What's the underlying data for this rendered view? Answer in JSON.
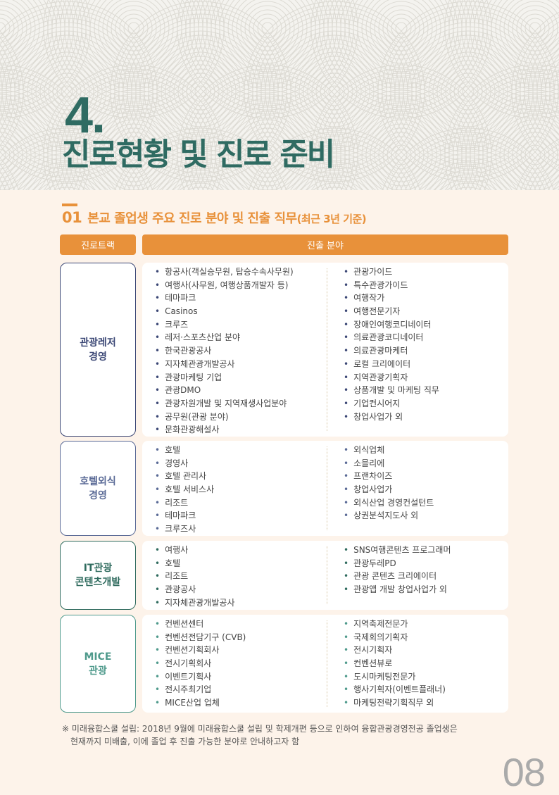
{
  "header": {
    "number": "4.",
    "title": "진로현황 및 진로 준비"
  },
  "section": {
    "number": "01",
    "title": "본교 졸업생 주요 진로 분야 및 진출 직무",
    "suffix": "(최근 3년 기준)"
  },
  "table": {
    "col1": "진로트랙",
    "col2": "진출 분야"
  },
  "colors": {
    "accent": "#e8913a",
    "title": "#2f6b62"
  },
  "groups": [
    {
      "track": [
        "관광레저",
        "경영"
      ],
      "color": "#3b4775",
      "left": [
        "항공사(객실승무원, 탑승수속사무원)",
        "여행사(사무원, 여행상품개발자 등)",
        "테마파크",
        "Casinos",
        "크루즈",
        "레저·스포츠산업 분야",
        "한국관광공사",
        "지자체관광개발공사",
        "관광마케팅 기업",
        "관광DMO",
        "관광자원개발 및 지역재생사업분야",
        "공무원(관광 분야)",
        "문화관광해설사"
      ],
      "right": [
        "관광가이드",
        "특수관광가이드",
        "여행작가",
        "여행전문기자",
        "장애인여행코디네이터",
        "의료관광코디네이터",
        "의료관광마케터",
        "로컬 크리에이터",
        "지역관광기획자",
        "상품개발 및 마케팅 직무",
        "기업컨시어지",
        "창업사업가 외"
      ]
    },
    {
      "track": [
        "호텔외식",
        "경영"
      ],
      "color": "#5a6a96",
      "left": [
        "호텔",
        "경영사",
        "호텔 관리사",
        "호텔 서비스사",
        "리조트",
        "테마파크",
        "크루즈사"
      ],
      "right": [
        "외식업체",
        "소믈리에",
        "프랜차이즈",
        "창업사업가",
        "외식산업 경영컨설턴트",
        "상권분석지도사 외"
      ]
    },
    {
      "track": [
        "IT관광",
        "콘텐츠개발"
      ],
      "color": "#2f6b5e",
      "left": [
        "여행사",
        "호텔",
        "리조트",
        "관광공사",
        "지자체관광개발공사"
      ],
      "right": [
        "SNS여행콘텐츠 프로그래머",
        "관광두레PD",
        "관광 콘텐츠 크리에이터",
        "관광앱 개발 창업사업가 외"
      ]
    },
    {
      "track": [
        "MICE",
        "관광"
      ],
      "color": "#4f9a8c",
      "left": [
        "컨벤션센터",
        "컨벤션전담기구 (CVB)",
        "컨벤션기획회사",
        "전시기획회사",
        "이벤트기획사",
        "전시주최기업",
        "MICE산업 업체"
      ],
      "right": [
        "지역축제전문가",
        "국제회의기획자",
        "전시기획자",
        "컨벤션뷰로",
        "도시마케팅전문가",
        "행사기획자(이벤트플래너)",
        "마케팅전략기획직무 외"
      ]
    }
  ],
  "note": {
    "line1": "※ 미래융합스쿨 설립: 2018년 9월에 미래융합스쿨 설립 및 학제개편 등으로 인하여 융합관광경영전공 졸업생은",
    "line2": "현재까지 미배출, 이에 졸업 후 진출 가능한 분야로 안내하고자 함"
  },
  "page_number": "08"
}
